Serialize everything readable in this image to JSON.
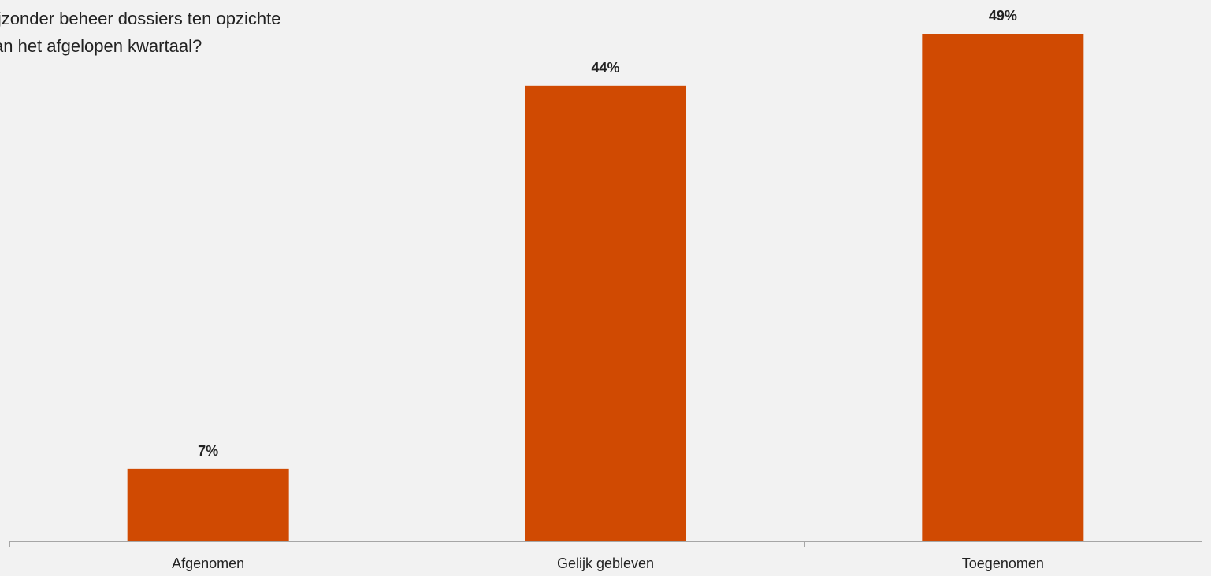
{
  "chart_data": {
    "type": "bar",
    "title": "ijzonder beheer dossiers ten opzichte\nan het afgelopen kwartaal?",
    "categories": [
      "Afgenomen",
      "Gelijk gebleven",
      "Toegenomen"
    ],
    "values": [
      7,
      44,
      49
    ],
    "data_labels": [
      "7%",
      "44%",
      "49%"
    ],
    "unit": "%",
    "ylim": [
      0,
      49
    ],
    "grid": false,
    "legend": "none",
    "bar_color": "#d04a02",
    "axis_color": "#a6a6a6",
    "background": "#f2f2f2"
  }
}
